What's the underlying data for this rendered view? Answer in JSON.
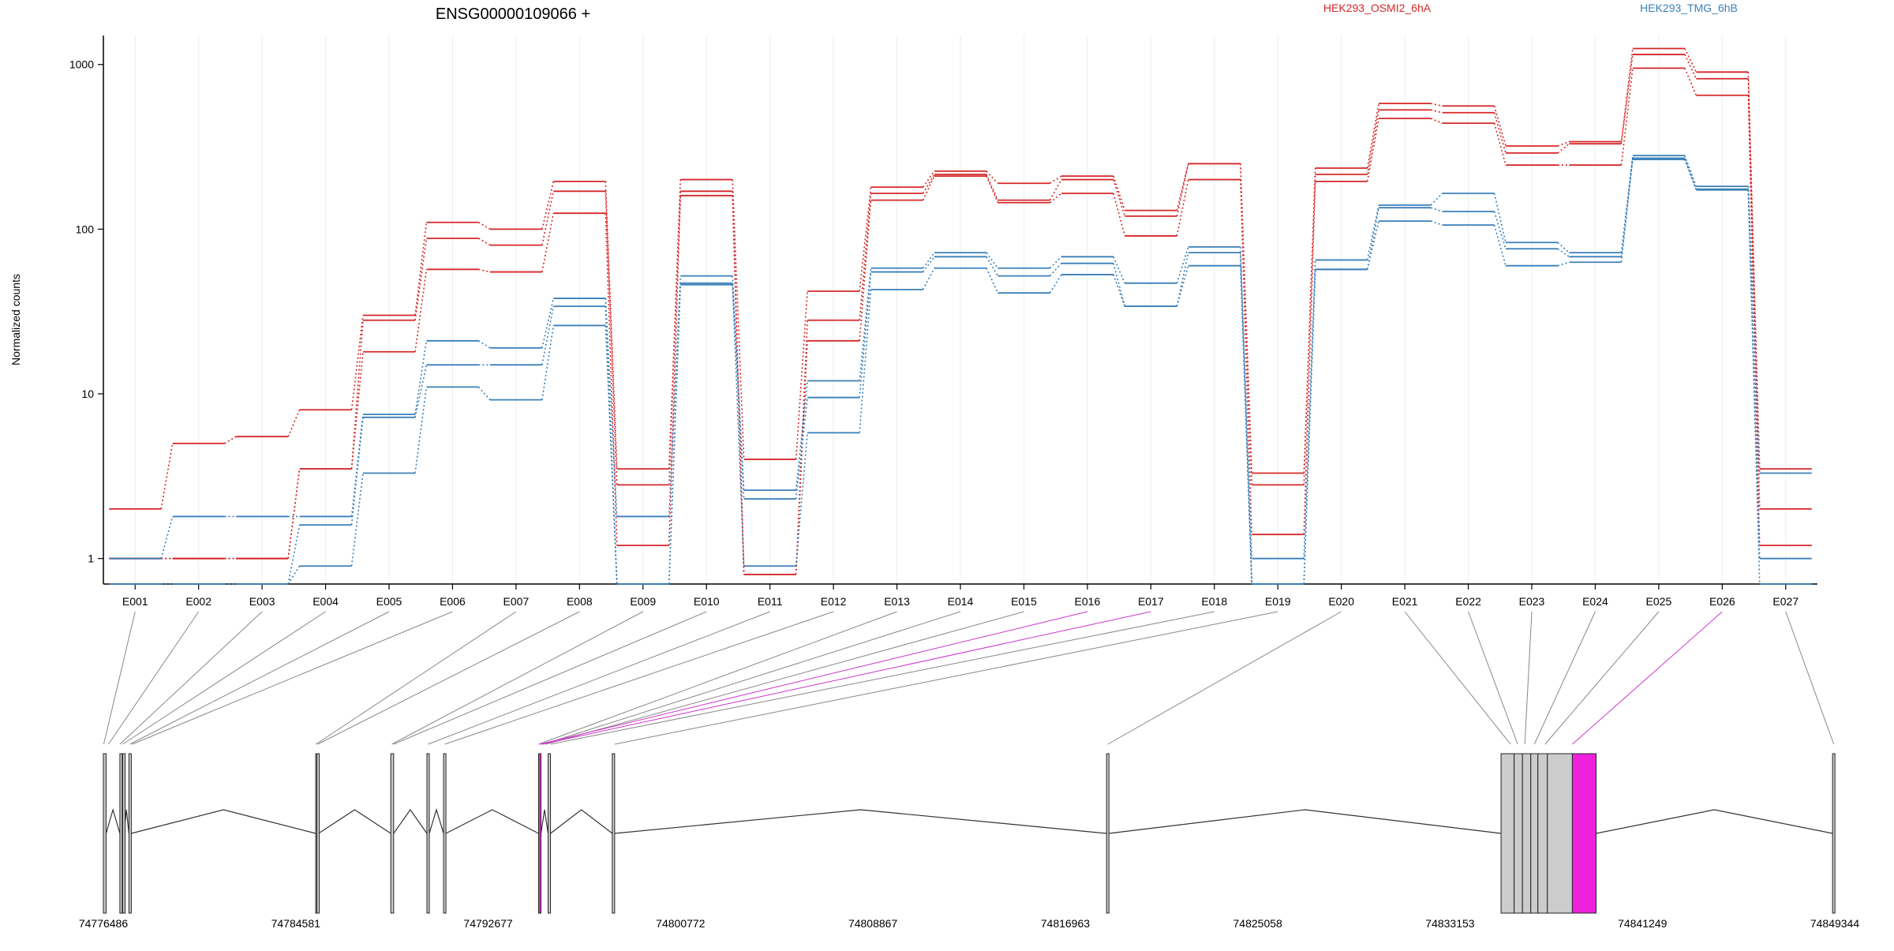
{
  "chart_data": {
    "type": "line",
    "title": "ENSG00000109066 +",
    "ylabel": "Normalized counts",
    "xlabel": "",
    "yscale": "log",
    "ylim": [
      0.7,
      1500
    ],
    "yticks": [
      1,
      10,
      100,
      1000
    ],
    "ytick_labels": [
      "1",
      "10",
      "100",
      "1000"
    ],
    "grid": "vertical-light",
    "legend_placement": "top",
    "categories": [
      "E001",
      "E002",
      "E003",
      "E004",
      "E005",
      "E006",
      "E007",
      "E008",
      "E009",
      "E010",
      "E011",
      "E012",
      "E013",
      "E014",
      "E015",
      "E016",
      "E017",
      "E018",
      "E019",
      "E020",
      "E021",
      "E022",
      "E023",
      "E024",
      "E025",
      "E026",
      "E027"
    ],
    "series": [
      {
        "group": "HEK293_OSMI2_6hA",
        "color": "#d62728",
        "values": [
          2,
          5,
          5.5,
          8,
          30,
          110,
          100,
          195,
          3.5,
          200,
          4,
          42,
          180,
          225,
          190,
          210,
          130,
          250,
          3.3,
          235,
          580,
          560,
          320,
          340,
          1250,
          900,
          3.5
        ]
      },
      {
        "group": "HEK293_OSMI2_6hA",
        "color": "#d62728",
        "values": [
          1,
          1,
          1,
          3.5,
          28,
          88,
          80,
          170,
          2.8,
          170,
          0.8,
          28,
          165,
          215,
          150,
          200,
          120,
          250,
          2.8,
          215,
          530,
          510,
          290,
          330,
          1150,
          820,
          2
        ]
      },
      {
        "group": "HEK293_OSMI2_6hA",
        "color": "#d62728",
        "values": [
          1,
          1,
          1,
          3.5,
          18,
          57,
          55,
          125,
          1.2,
          160,
          0.8,
          21,
          150,
          210,
          145,
          165,
          91,
          200,
          1.4,
          195,
          470,
          440,
          245,
          245,
          950,
          650,
          1.2
        ]
      },
      {
        "group": "HEK293_TMG_6hB",
        "color": "#3a7fb8",
        "values": [
          1,
          1.8,
          1.8,
          1.8,
          7.5,
          21,
          19,
          38,
          1.8,
          52,
          2.6,
          12,
          58,
          72,
          58,
          68,
          47,
          78,
          1,
          65,
          140,
          165,
          83,
          72,
          280,
          182,
          3.3
        ]
      },
      {
        "group": "HEK293_TMG_6hB",
        "color": "#3a7fb8",
        "values": [
          0.7,
          0.7,
          0.7,
          1.6,
          7.2,
          15,
          15,
          34,
          0.7,
          47,
          2.3,
          9.5,
          55,
          68,
          52,
          62,
          34,
          72,
          0.7,
          57,
          135,
          128,
          76,
          68,
          265,
          175,
          1
        ]
      },
      {
        "group": "HEK293_TMG_6hB",
        "color": "#3a7fb8",
        "values": [
          0.7,
          0.7,
          0.7,
          0.9,
          3.3,
          11,
          9.2,
          26,
          0.7,
          46,
          0.9,
          5.8,
          43,
          58,
          41,
          53,
          34,
          60,
          0.7,
          57,
          112,
          106,
          60,
          63,
          270,
          173,
          0.7
        ]
      }
    ],
    "legend": [
      {
        "name": "HEK293_OSMI2_6hA",
        "color": "#d62728"
      },
      {
        "name": "HEK293_TMG_6hB",
        "color": "#3a7fb8"
      }
    ],
    "gene_model": {
      "coord_ticks": [
        74776486,
        74784581,
        74792677,
        74800772,
        74808867,
        74816963,
        74825058,
        74833153,
        74841249,
        74849344
      ],
      "coord_tick_labels": [
        "74776486",
        "74784581",
        "74792677",
        "74800772",
        "74808867",
        "74816963",
        "74825058",
        "74833153",
        "74841249",
        "74849344"
      ],
      "highlight_color": "#ee22dd",
      "exon_fill": "#cccccc",
      "exons": [
        {
          "id": "E001",
          "start": 74776486,
          "end": 74776600,
          "highlight": false
        },
        {
          "id": "E002",
          "start": 74777180,
          "end": 74777230,
          "highlight": false
        },
        {
          "id": "E003",
          "start": 74777300,
          "end": 74777350,
          "highlight": false
        },
        {
          "id": "E004",
          "start": 74777560,
          "end": 74777660,
          "highlight": false
        },
        {
          "id": "E005",
          "start": 74785420,
          "end": 74785470,
          "highlight": false
        },
        {
          "id": "E006",
          "start": 74785470,
          "end": 74785540,
          "highlight": false
        },
        {
          "id": "E007",
          "start": 74788580,
          "end": 74788700,
          "highlight": false
        },
        {
          "id": "E008",
          "start": 74790100,
          "end": 74790200,
          "highlight": false
        },
        {
          "id": "E009",
          "start": 74790800,
          "end": 74790900,
          "highlight": false
        },
        {
          "id": "E010",
          "start": 74794800,
          "end": 74794900,
          "highlight": true
        },
        {
          "id": "E011",
          "start": 74795200,
          "end": 74795300,
          "highlight": false
        },
        {
          "id": "E012",
          "start": 74797900,
          "end": 74798000,
          "highlight": false
        },
        {
          "id": "E013",
          "start": 74818700,
          "end": 74818800,
          "highlight": false
        },
        {
          "id": "E014",
          "start": 74835300,
          "end": 74835850,
          "highlight": false
        },
        {
          "id": "E015",
          "start": 74835850,
          "end": 74836200,
          "highlight": false
        },
        {
          "id": "E016",
          "start": 74836200,
          "end": 74836550,
          "highlight": false
        },
        {
          "id": "E017",
          "start": 74836550,
          "end": 74836850,
          "highlight": false
        },
        {
          "id": "E018",
          "start": 74836850,
          "end": 74837250,
          "highlight": false
        },
        {
          "id": "E019",
          "start": 74837250,
          "end": 74838300,
          "highlight": false
        },
        {
          "id": "E020",
          "start": 74838300,
          "end": 74839300,
          "highlight": true
        },
        {
          "id": "E021",
          "start": 74849250,
          "end": 74849344,
          "highlight": false
        }
      ],
      "connectors": [
        {
          "exon": "E001",
          "coord": 74776500,
          "highlight": false
        },
        {
          "exon": "E002",
          "coord": 74776700,
          "highlight": false
        },
        {
          "exon": "E003",
          "coord": 74777180,
          "highlight": false
        },
        {
          "exon": "E004",
          "coord": 74777300,
          "highlight": false
        },
        {
          "exon": "E005",
          "coord": 74777600,
          "highlight": false
        },
        {
          "exon": "E006",
          "coord": 74777700,
          "highlight": false
        },
        {
          "exon": "E007",
          "coord": 74785430,
          "highlight": false
        },
        {
          "exon": "E008",
          "coord": 74785500,
          "highlight": false
        },
        {
          "exon": "E009",
          "coord": 74788620,
          "highlight": false
        },
        {
          "exon": "E010",
          "coord": 74788700,
          "highlight": false
        },
        {
          "exon": "E011",
          "coord": 74790150,
          "highlight": false
        },
        {
          "exon": "E012",
          "coord": 74790850,
          "highlight": false
        },
        {
          "exon": "E013",
          "coord": 74794800,
          "highlight": false
        },
        {
          "exon": "E014",
          "coord": 74795000,
          "highlight": false
        },
        {
          "exon": "E015",
          "coord": 74795100,
          "highlight": false
        },
        {
          "exon": "E016",
          "coord": 74794850,
          "highlight": true
        },
        {
          "exon": "E017",
          "coord": 74794950,
          "highlight": true
        },
        {
          "exon": "E018",
          "coord": 74795300,
          "highlight": false
        },
        {
          "exon": "E019",
          "coord": 74798000,
          "highlight": false
        },
        {
          "exon": "E020",
          "coord": 74818750,
          "highlight": false
        },
        {
          "exon": "E021",
          "coord": 74835700,
          "highlight": false
        },
        {
          "exon": "E022",
          "coord": 74836000,
          "highlight": false
        },
        {
          "exon": "E023",
          "coord": 74836300,
          "highlight": false
        },
        {
          "exon": "E024",
          "coord": 74836700,
          "highlight": false
        },
        {
          "exon": "E025",
          "coord": 74837150,
          "highlight": false
        },
        {
          "exon": "E026",
          "coord": 74838300,
          "highlight": true
        },
        {
          "exon": "E027",
          "coord": 74849300,
          "highlight": false
        }
      ]
    }
  }
}
